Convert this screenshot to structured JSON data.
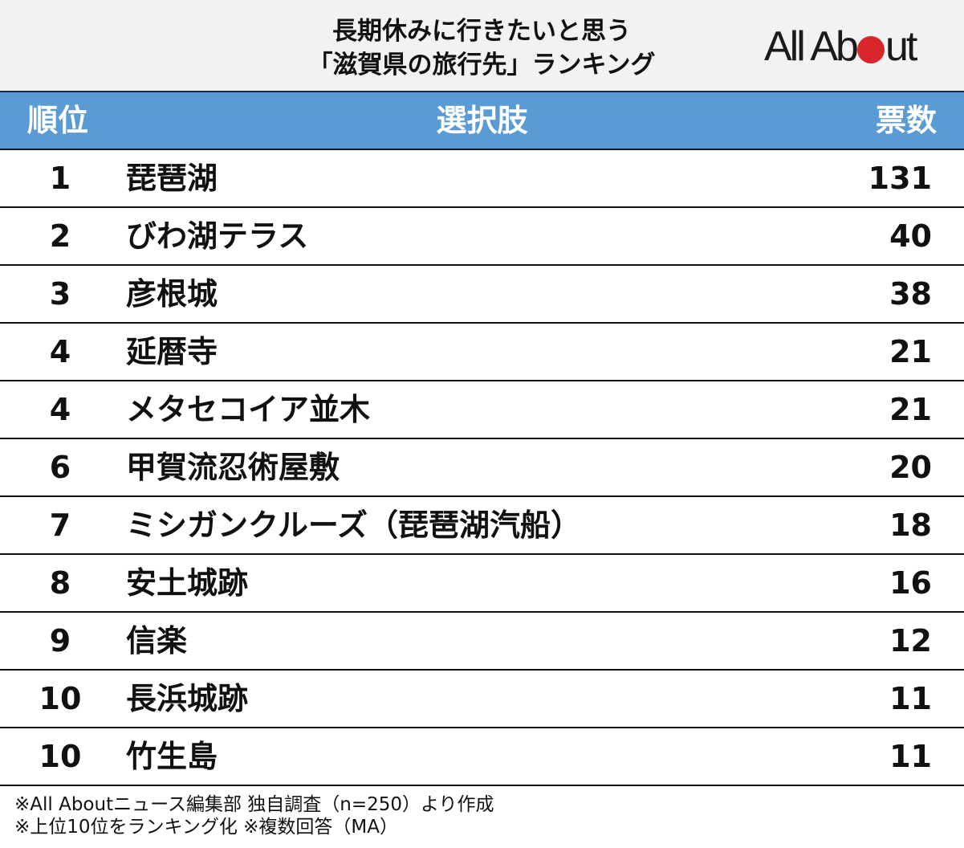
{
  "header": {
    "title_line1": "長期休みに行きたいと思う",
    "title_line2": "「滋賀県の旅行先」ランキング",
    "logo": {
      "text_before": "All Ab",
      "text_after": "ut",
      "dot_color": "#d9262a"
    }
  },
  "table": {
    "header_bg": "#5b9bd5",
    "columns": {
      "rank": "順位",
      "choice": "選択肢",
      "votes": "票数"
    },
    "rows": [
      {
        "rank": "1",
        "name": "琵琶湖",
        "votes": "131"
      },
      {
        "rank": "2",
        "name": "びわ湖テラス",
        "votes": "40"
      },
      {
        "rank": "3",
        "name": "彦根城",
        "votes": "38"
      },
      {
        "rank": "4",
        "name": "延暦寺",
        "votes": "21"
      },
      {
        "rank": "4",
        "name": "メタセコイア並木",
        "votes": "21"
      },
      {
        "rank": "6",
        "name": "甲賀流忍術屋敷",
        "votes": "20"
      },
      {
        "rank": "7",
        "name": "ミシガンクルーズ（琵琶湖汽船）",
        "votes": "18"
      },
      {
        "rank": "8",
        "name": "安土城跡",
        "votes": "16"
      },
      {
        "rank": "9",
        "name": "信楽",
        "votes": "12"
      },
      {
        "rank": "10",
        "name": "長浜城跡",
        "votes": "11"
      },
      {
        "rank": "10",
        "name": "竹生島",
        "votes": "11"
      }
    ]
  },
  "notes": {
    "line1": "※All Aboutニュース編集部 独自調査（n=250）より作成",
    "line2": "※上位10位をランキング化 ※複数回答（MA）"
  },
  "chart_data": {
    "type": "table",
    "title": "長期休みに行きたいと思う「滋賀県の旅行先」ランキング",
    "columns": [
      "順位",
      "選択肢",
      "票数"
    ],
    "categories": [
      "琵琶湖",
      "びわ湖テラス",
      "彦根城",
      "延暦寺",
      "メタセコイア並木",
      "甲賀流忍術屋敷",
      "ミシガンクルーズ（琵琶湖汽船）",
      "安土城跡",
      "信楽",
      "長浜城跡",
      "竹生島"
    ],
    "ranks": [
      1,
      2,
      3,
      4,
      4,
      6,
      7,
      8,
      9,
      10,
      10
    ],
    "values": [
      131,
      40,
      38,
      21,
      21,
      20,
      18,
      16,
      12,
      11,
      11
    ],
    "sample_size": 250,
    "notes": [
      "※All Aboutニュース編集部 独自調査（n=250）より作成",
      "※上位10位をランキング化 ※複数回答（MA）"
    ]
  }
}
